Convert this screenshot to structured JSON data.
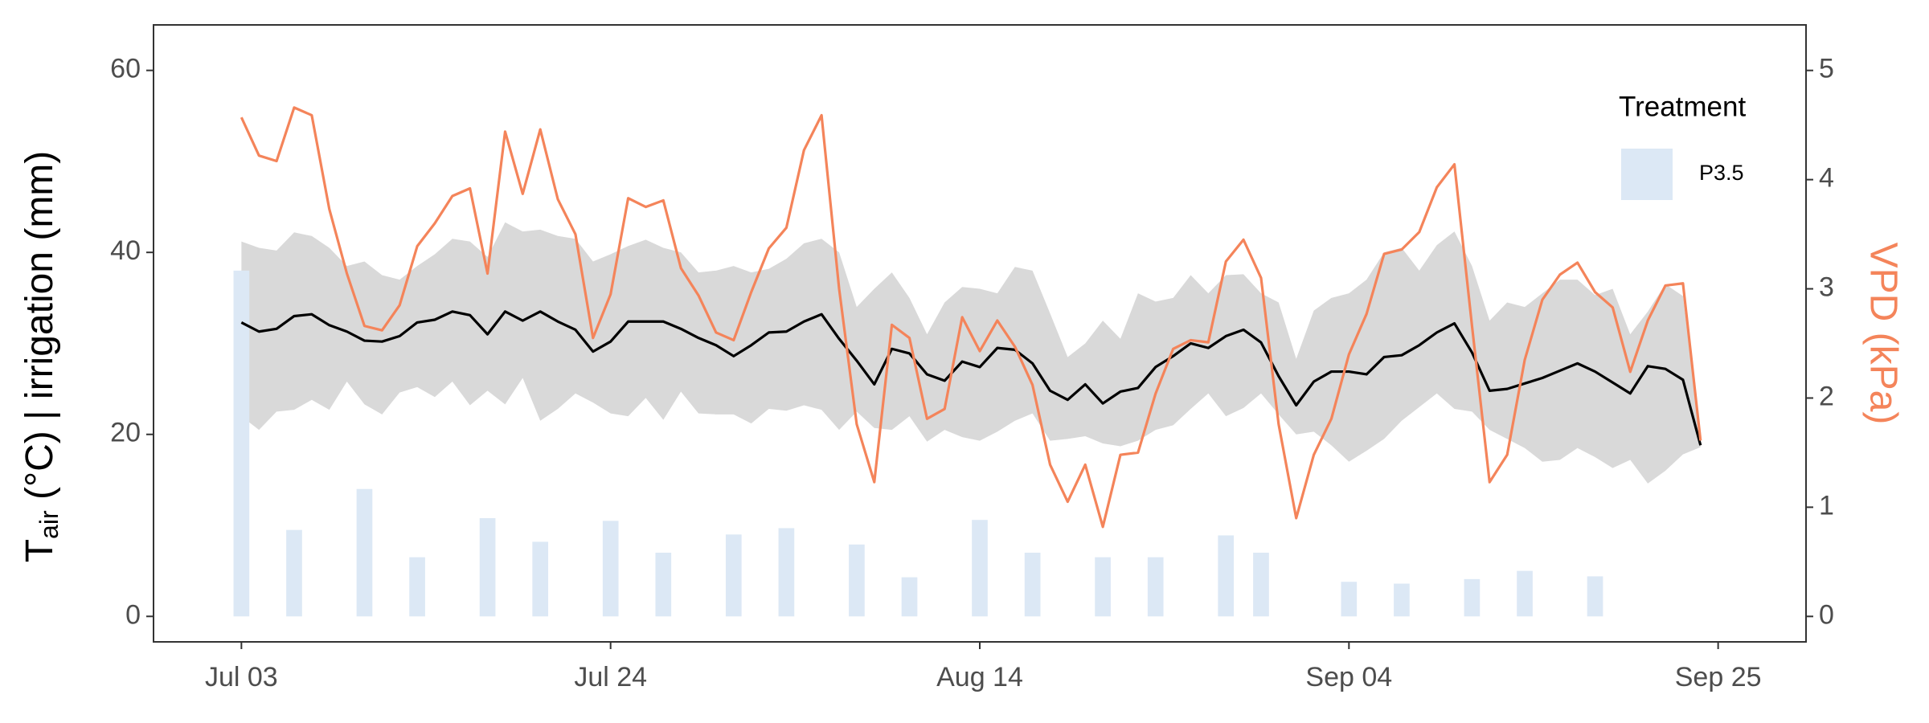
{
  "chart_data": {
    "type": "combo",
    "y_label": {
      "main": "T",
      "sub": "air",
      "rest": " (°C) | irrigation (mm)"
    },
    "y2_label": "VPD (kPa)",
    "y2_label_color": "#f4845a",
    "legend_title": "Treatment",
    "legend_position": "top-right",
    "x": [
      "Jul 03",
      "Jul 04",
      "Jul 05",
      "Jul 06",
      "Jul 07",
      "Jul 08",
      "Jul 09",
      "Jul 10",
      "Jul 11",
      "Jul 12",
      "Jul 13",
      "Jul 14",
      "Jul 15",
      "Jul 16",
      "Jul 17",
      "Jul 18",
      "Jul 19",
      "Jul 20",
      "Jul 21",
      "Jul 22",
      "Jul 23",
      "Jul 24",
      "Jul 25",
      "Jul 26",
      "Jul 27",
      "Jul 28",
      "Jul 29",
      "Jul 30",
      "Jul 31",
      "Aug 01",
      "Aug 02",
      "Aug 03",
      "Aug 04",
      "Aug 05",
      "Aug 06",
      "Aug 07",
      "Aug 08",
      "Aug 09",
      "Aug 10",
      "Aug 11",
      "Aug 12",
      "Aug 13",
      "Aug 14",
      "Aug 15",
      "Aug 16",
      "Aug 17",
      "Aug 18",
      "Aug 19",
      "Aug 20",
      "Aug 21",
      "Aug 22",
      "Aug 23",
      "Aug 24",
      "Aug 25",
      "Aug 26",
      "Aug 27",
      "Aug 28",
      "Aug 29",
      "Aug 30",
      "Aug 31",
      "Sep 01",
      "Sep 02",
      "Sep 03",
      "Sep 04",
      "Sep 05",
      "Sep 06",
      "Sep 07",
      "Sep 08",
      "Sep 09",
      "Sep 10",
      "Sep 11",
      "Sep 12",
      "Sep 13",
      "Sep 14",
      "Sep 15",
      "Sep 16",
      "Sep 17",
      "Sep 18",
      "Sep 19",
      "Sep 20",
      "Sep 21",
      "Sep 22",
      "Sep 23",
      "Sep 24"
    ],
    "xlim": [
      "Jun 28",
      "Sep 30"
    ],
    "xticks": [
      "Jul 03",
      "Jul 24",
      "Aug 14",
      "Sep 04",
      "Sep 25"
    ],
    "ylim": [
      -2.8,
      65
    ],
    "yticks": [
      0,
      20,
      40,
      60
    ],
    "y2lim": [
      -0.233,
      5.417
    ],
    "y2ticks": [
      0,
      1,
      2,
      3,
      4,
      5
    ],
    "series": [
      {
        "type": "band",
        "color": "#d9d9d9",
        "upper": [
          41.2,
          40.5,
          40.2,
          42.2,
          41.8,
          40.5,
          38.5,
          39,
          37.5,
          37,
          38.5,
          39.8,
          41.5,
          41.2,
          39.5,
          43.3,
          42.3,
          42.5,
          41.8,
          41.5,
          39,
          39.8,
          40.7,
          41.4,
          40.5,
          40,
          37.8,
          38,
          38.5,
          37.8,
          38.2,
          39.3,
          41,
          41.5,
          40,
          34,
          36,
          37.8,
          35,
          31,
          34.5,
          36.2,
          36,
          35.5,
          38.4,
          38,
          33.3,
          28.5,
          30,
          32.5,
          30.5,
          35.5,
          34.6,
          35,
          37.5,
          35.5,
          37.5,
          37.6,
          35.5,
          34.5,
          28.3,
          33.6,
          35,
          35.5,
          37,
          40,
          40.5,
          38,
          40.8,
          42.3,
          38.5,
          32.5,
          34.5,
          34,
          35.5,
          37,
          37,
          35.3,
          36,
          31,
          33.5,
          36.5,
          35.2,
          19
        ],
        "lower": [
          22,
          20.5,
          22.5,
          22.7,
          23.8,
          22.7,
          25.8,
          23.3,
          22.2,
          24.6,
          25.2,
          24.1,
          25.8,
          23.2,
          24.8,
          23.3,
          26.2,
          21.5,
          22.8,
          24.5,
          23.5,
          22.3,
          22,
          24,
          21.6,
          24.7,
          22.3,
          22.2,
          22.2,
          21.2,
          22.8,
          22.6,
          23.2,
          22.7,
          20.5,
          22.5,
          20.7,
          20.5,
          22,
          19.2,
          20.5,
          19.7,
          19.3,
          20.3,
          21.5,
          22.3,
          19.3,
          19.5,
          19.8,
          19,
          18.7,
          19.3,
          20.5,
          21,
          22.8,
          24.5,
          22,
          22.9,
          24.5,
          22.2,
          20,
          20.3,
          18.8,
          17,
          18.2,
          19.5,
          21.5,
          23,
          24.5,
          22.8,
          22.5,
          20.5,
          19.5,
          18.5,
          17,
          17.2,
          18.5,
          17.5,
          16.3,
          17.2,
          14.6,
          16,
          17.8,
          18.6
        ]
      },
      {
        "type": "bar",
        "name": "P3.5",
        "color": "#dce8f5",
        "values": [
          38,
          null,
          null,
          9.5,
          null,
          null,
          null,
          14,
          null,
          null,
          6.5,
          null,
          null,
          null,
          10.8,
          null,
          null,
          8.2,
          null,
          null,
          null,
          10.5,
          null,
          null,
          7,
          null,
          null,
          null,
          9,
          null,
          null,
          9.7,
          null,
          null,
          null,
          7.9,
          null,
          null,
          4.3,
          null,
          null,
          null,
          10.6,
          null,
          null,
          7,
          null,
          null,
          null,
          6.5,
          null,
          null,
          6.5,
          null,
          null,
          null,
          8.9,
          null,
          7,
          null,
          null,
          null,
          null,
          3.8,
          null,
          null,
          3.6,
          null,
          null,
          null,
          4.1,
          null,
          null,
          5,
          null,
          null,
          null,
          4.4,
          null,
          null,
          null,
          null,
          null,
          null
        ]
      },
      {
        "type": "line",
        "color": "#000000",
        "values": [
          32.3,
          31.3,
          31.6,
          33,
          33.2,
          32,
          31.3,
          30.3,
          30.2,
          30.8,
          32.3,
          32.6,
          33.5,
          33.1,
          31,
          33.5,
          32.5,
          33.5,
          32.4,
          31.5,
          29.1,
          30.2,
          32.4,
          32.4,
          32.4,
          31.6,
          30.6,
          29.8,
          28.6,
          29.8,
          31.2,
          31.3,
          32.4,
          33.2,
          30.5,
          28.1,
          25.5,
          29.4,
          28.9,
          26.6,
          25.9,
          28,
          27.4,
          29.5,
          29.3,
          27.8,
          24.8,
          23.8,
          25.5,
          23.4,
          24.7,
          25.1,
          27.4,
          28.6,
          30,
          29.5,
          30.8,
          31.5,
          30.1,
          26.4,
          23.2,
          25.8,
          26.9,
          26.9,
          26.6,
          28.5,
          28.7,
          29.8,
          31.2,
          32.2,
          29,
          24.8,
          25,
          25.6,
          26.2,
          27,
          27.8,
          26.9,
          25.7,
          24.5,
          27.5,
          27.2,
          26,
          18.8
        ]
      },
      {
        "type": "line",
        "axis": "y2",
        "color": "#f4845a",
        "values": [
          4.57,
          4.22,
          4.17,
          4.66,
          4.59,
          3.73,
          3.14,
          2.66,
          2.62,
          2.85,
          3.39,
          3.6,
          3.85,
          3.92,
          3.14,
          4.44,
          3.87,
          4.46,
          3.82,
          3.5,
          2.55,
          2.95,
          3.83,
          3.75,
          3.81,
          3.19,
          2.94,
          2.6,
          2.53,
          2.97,
          3.37,
          3.56,
          4.27,
          4.59,
          3.0,
          1.76,
          1.23,
          2.67,
          2.55,
          1.81,
          1.9,
          2.74,
          2.43,
          2.71,
          2.47,
          2.12,
          1.39,
          1.05,
          1.39,
          0.82,
          1.48,
          1.5,
          2.04,
          2.45,
          2.53,
          2.51,
          3.25,
          3.45,
          3.1,
          1.76,
          0.9,
          1.48,
          1.81,
          2.4,
          2.77,
          3.32,
          3.36,
          3.52,
          3.93,
          4.14,
          2.66,
          1.23,
          1.48,
          2.35,
          2.9,
          3.13,
          3.24,
          2.97,
          2.83,
          2.24,
          2.71,
          3.03,
          3.05,
          1.61
        ]
      }
    ]
  }
}
